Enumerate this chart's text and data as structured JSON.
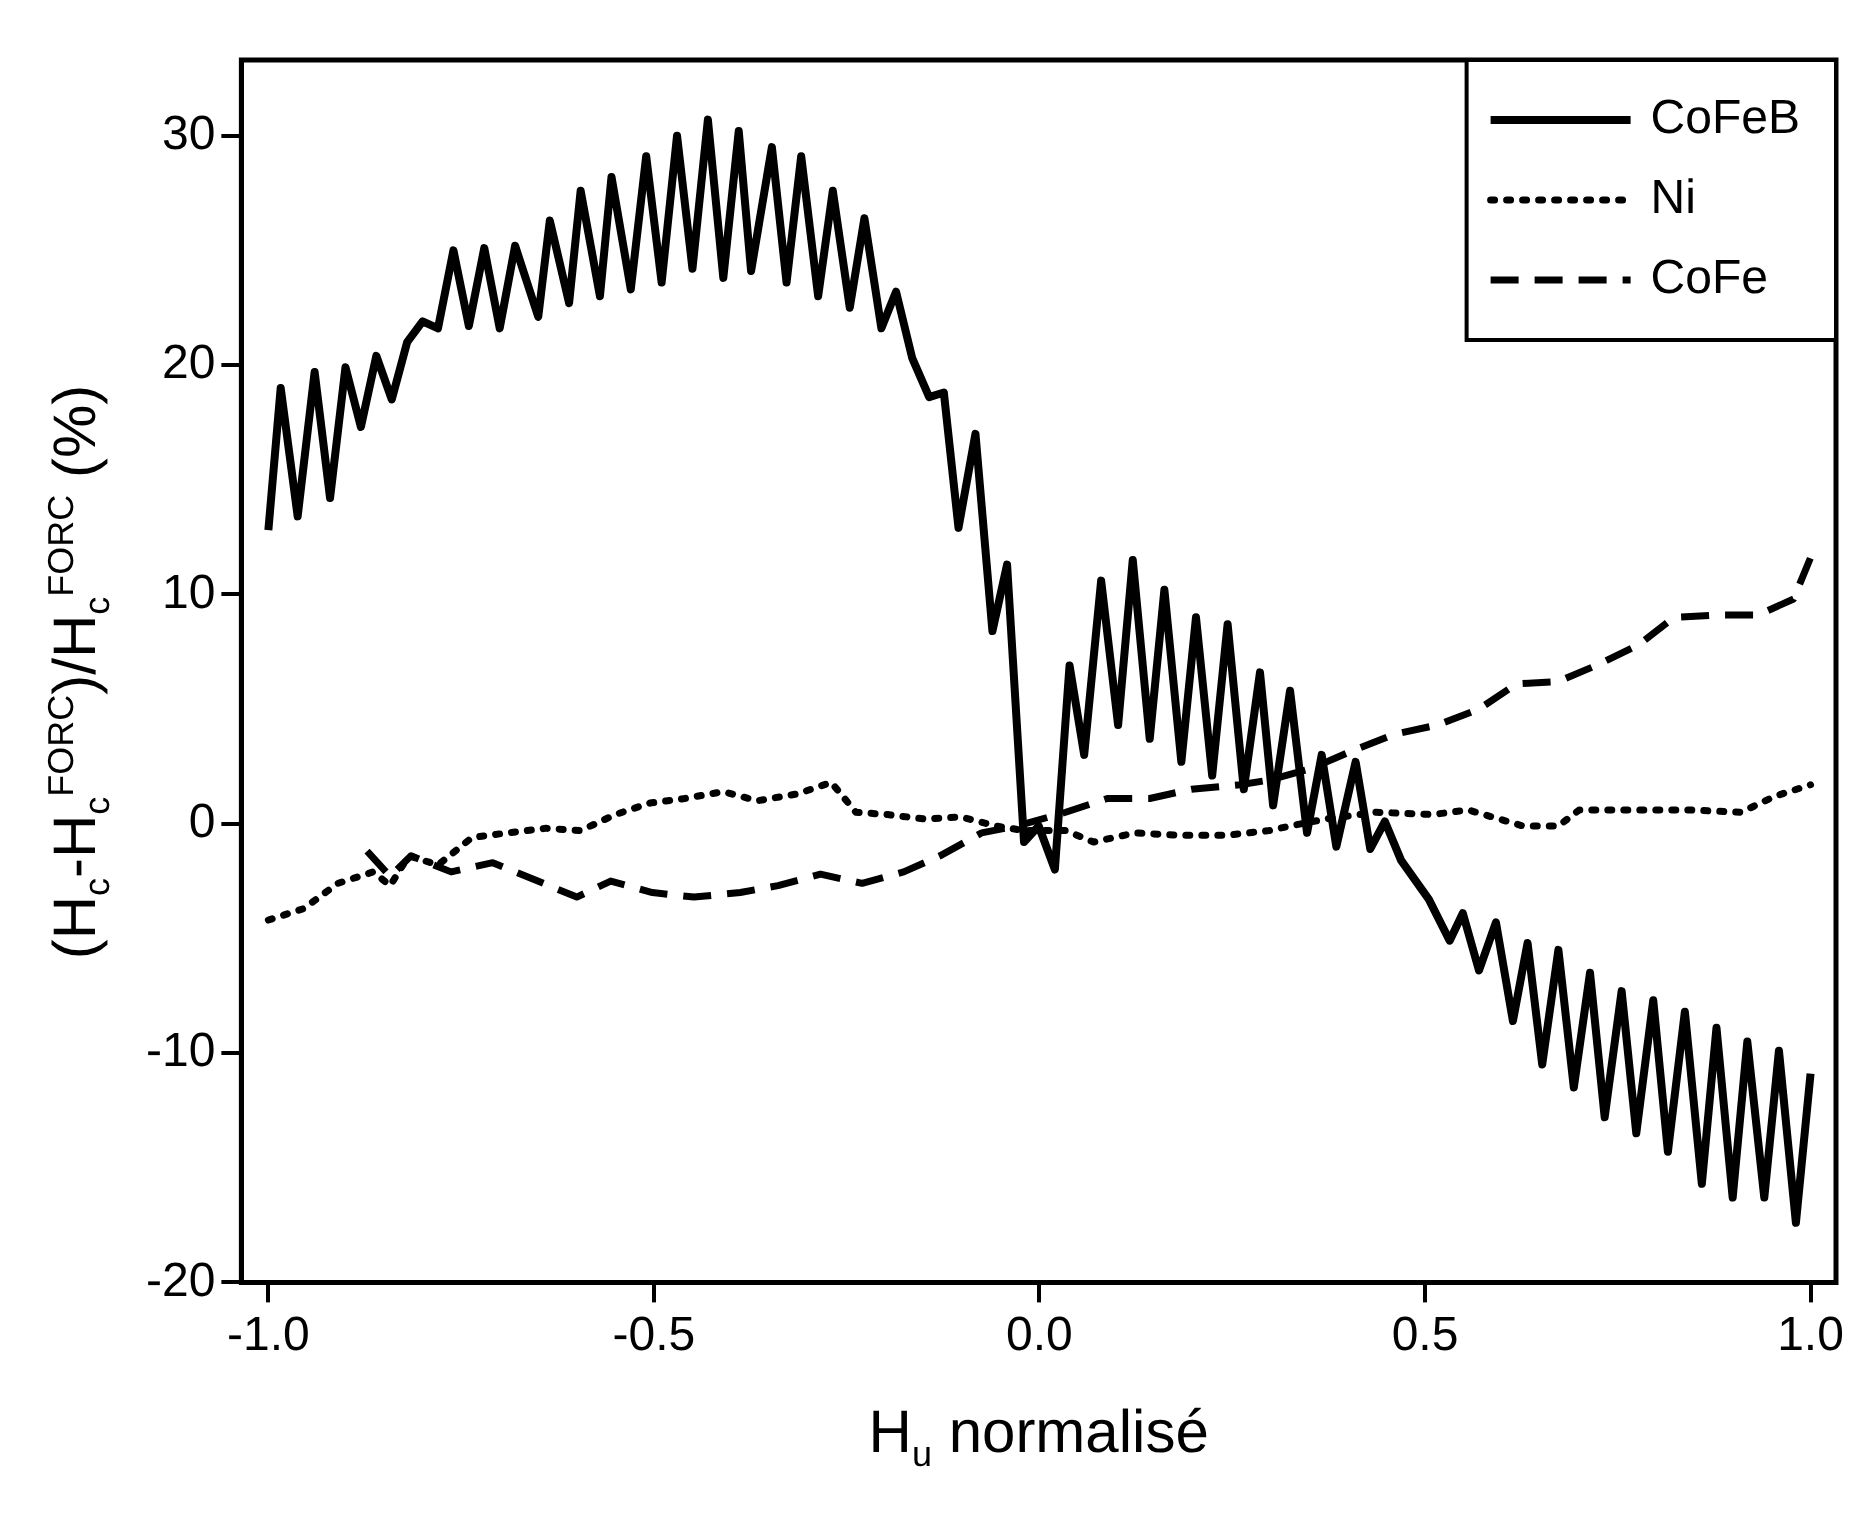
{
  "chart_data": {
    "type": "line",
    "xlabel": "H$_{u}$ normalisé",
    "ylabel": "(H$_{c}$-H$_{c}$$^{FORC}$)/H$_{c}$$^{FORC}$ (%)",
    "xlim": [
      -1.035,
      1.033
    ],
    "ylim": [
      -20,
      33.3
    ],
    "xticks": [
      {
        "value": -1,
        "label": "-1.0"
      },
      {
        "value": -0.5,
        "label": "-0.5"
      },
      {
        "value": 0,
        "label": "0.0"
      },
      0.5,
      {
        "value": 1,
        "label": "1.0"
      }
    ],
    "yticks": [
      -20,
      -10,
      0,
      10,
      20,
      30
    ],
    "grid": false,
    "legend": "top right",
    "marker": "none",
    "series": [
      {
        "name": "CoFeB",
        "color": "#000000",
        "line_style": "solid",
        "x": [
          -1.0,
          -0.984,
          -0.962,
          -0.94,
          -0.92,
          -0.9,
          -0.88,
          -0.86,
          -0.84,
          -0.82,
          -0.8,
          -0.78,
          -0.76,
          -0.74,
          -0.72,
          -0.7,
          -0.68,
          -0.65,
          -0.635,
          -0.61,
          -0.595,
          -0.57,
          -0.555,
          -0.53,
          -0.51,
          -0.49,
          -0.47,
          -0.45,
          -0.43,
          -0.41,
          -0.39,
          -0.374,
          -0.347,
          -0.328,
          -0.309,
          -0.287,
          -0.268,
          -0.246,
          -0.227,
          -0.205,
          -0.186,
          -0.165,
          -0.143,
          -0.124,
          -0.105,
          -0.083,
          -0.061,
          -0.042,
          -0.02,
          -0.001,
          0.02,
          0.039,
          0.058,
          0.08,
          0.102,
          0.121,
          0.143,
          0.162,
          0.184,
          0.203,
          0.224,
          0.244,
          0.265,
          0.286,
          0.303,
          0.325,
          0.347,
          0.366,
          0.385,
          0.41,
          0.429,
          0.448,
          0.469,
          0.505,
          0.532,
          0.549,
          0.57,
          0.592,
          0.614,
          0.633,
          0.652,
          0.673,
          0.693,
          0.714,
          0.733,
          0.755,
          0.774,
          0.796,
          0.815,
          0.837,
          0.859,
          0.878,
          0.899,
          0.918,
          0.94,
          0.959,
          0.981,
          1.0
        ],
        "values": [
          12.8,
          19.0,
          13.4,
          19.7,
          14.2,
          19.9,
          17.3,
          20.4,
          18.5,
          21.0,
          21.9,
          21.6,
          25.0,
          21.7,
          25.1,
          21.6,
          25.2,
          22.1,
          26.3,
          22.7,
          27.6,
          23.0,
          28.2,
          23.3,
          29.1,
          23.6,
          30.0,
          24.2,
          30.7,
          23.8,
          30.2,
          24.1,
          29.5,
          23.6,
          29.1,
          23.0,
          27.6,
          22.5,
          26.4,
          21.6,
          23.2,
          20.3,
          18.6,
          18.8,
          12.9,
          17.0,
          8.4,
          11.3,
          -0.8,
          -0.1,
          -2.0,
          6.9,
          3.0,
          10.6,
          4.3,
          11.5,
          3.7,
          10.2,
          2.7,
          9.0,
          2.1,
          8.7,
          1.5,
          6.6,
          0.8,
          5.8,
          -0.4,
          3.0,
          -1.0,
          2.7,
          -1.1,
          0.1,
          -1.6,
          -3.3,
          -5.1,
          -3.9,
          -6.4,
          -4.3,
          -8.6,
          -5.2,
          -10.5,
          -5.5,
          -11.5,
          -6.5,
          -12.8,
          -7.3,
          -13.5,
          -7.7,
          -14.3,
          -8.2,
          -15.7,
          -8.9,
          -16.3,
          -9.5,
          -16.3,
          -9.9,
          -17.4,
          -10.9
        ]
      },
      {
        "name": "Ni",
        "color": "#000000",
        "line_style": "dotted",
        "x": [
          -1.0,
          -0.954,
          -0.91,
          -0.864,
          -0.842,
          -0.818,
          -0.78,
          -0.736,
          -0.69,
          -0.64,
          -0.595,
          -0.55,
          -0.505,
          -0.46,
          -0.41,
          -0.366,
          -0.314,
          -0.27,
          -0.238,
          -0.197,
          -0.148,
          -0.102,
          -0.056,
          -0.02,
          0.034,
          0.07,
          0.124,
          0.178,
          0.244,
          0.298,
          0.325,
          0.37,
          0.437,
          0.51,
          0.556,
          0.627,
          0.673,
          0.7,
          0.769,
          0.842,
          0.91,
          0.954,
          1.0
        ],
        "values": [
          -4.2,
          -3.7,
          -2.6,
          -2.1,
          -2.7,
          -1.4,
          -1.8,
          -0.6,
          -0.4,
          -0.2,
          -0.3,
          0.4,
          0.9,
          1.1,
          1.4,
          1.0,
          1.3,
          1.8,
          0.5,
          0.4,
          0.2,
          0.3,
          -0.1,
          -0.3,
          -0.3,
          -0.8,
          -0.4,
          -0.5,
          -0.5,
          -0.3,
          -0.1,
          0.2,
          0.5,
          0.4,
          0.6,
          -0.1,
          -0.1,
          0.6,
          0.6,
          0.6,
          0.5,
          1.2,
          1.7
        ]
      },
      {
        "name": "CoFe",
        "color": "#000000",
        "line_style": "dashed",
        "x": [
          -0.872,
          -0.842,
          -0.815,
          -0.763,
          -0.709,
          -0.665,
          -0.6,
          -0.556,
          -0.502,
          -0.448,
          -0.388,
          -0.339,
          -0.284,
          -0.23,
          -0.176,
          -0.129,
          -0.075,
          -0.029,
          0.034,
          0.088,
          0.143,
          0.197,
          0.26,
          0.298,
          0.352,
          0.407,
          0.46,
          0.516,
          0.57,
          0.619,
          0.673,
          0.722,
          0.777,
          0.823,
          0.878,
          0.932,
          0.978,
          1.0
        ],
        "values": [
          -1.2,
          -2.3,
          -1.4,
          -2.1,
          -1.7,
          -2.3,
          -3.2,
          -2.5,
          -3.0,
          -3.2,
          -3.0,
          -2.7,
          -2.2,
          -2.6,
          -2.1,
          -1.4,
          -0.4,
          -0.1,
          0.5,
          1.1,
          1.1,
          1.5,
          1.7,
          1.9,
          2.4,
          3.2,
          3.9,
          4.3,
          5.0,
          6.1,
          6.2,
          6.9,
          7.8,
          9.0,
          9.1,
          9.1,
          9.8,
          11.6
        ]
      }
    ]
  }
}
